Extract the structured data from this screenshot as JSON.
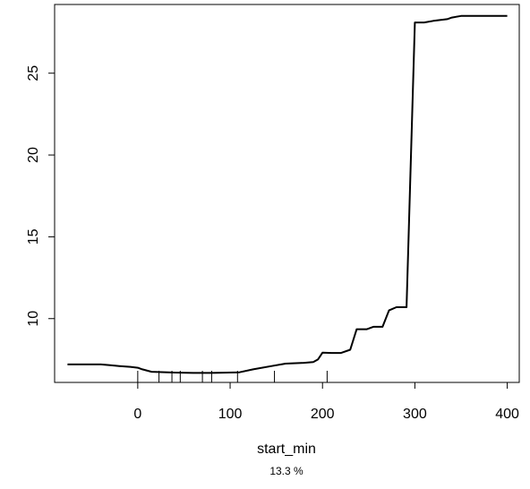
{
  "chart_data": {
    "type": "line",
    "title": "",
    "xlabel": "start_min",
    "subtitle": "13.3 %",
    "ylabel": "",
    "xlim": [
      -90,
      413
    ],
    "ylim": [
      6.1,
      29.2
    ],
    "x_ticks": [
      0,
      100,
      200,
      300,
      400
    ],
    "x_tick_labels": [
      "0",
      "100",
      "200",
      "300",
      "400"
    ],
    "y_ticks": [
      10,
      15,
      20,
      25
    ],
    "y_tick_labels": [
      "10",
      "15",
      "20",
      "25"
    ],
    "grid": false,
    "legend": "none",
    "line_color": "#000000",
    "series": [
      {
        "x": [
          -76,
          -40,
          -30,
          -20,
          -8,
          0,
          5,
          15,
          40,
          60,
          80,
          110,
          125,
          145,
          160,
          180,
          190,
          195,
          200,
          210,
          220,
          230,
          237,
          248,
          255,
          265,
          272,
          280,
          285,
          291,
          300,
          303,
          310,
          320,
          335,
          340,
          350,
          370,
          400
        ],
        "y": [
          7.2,
          7.2,
          7.15,
          7.1,
          7.05,
          7.0,
          6.9,
          6.75,
          6.7,
          6.68,
          6.68,
          6.72,
          6.9,
          7.1,
          7.25,
          7.3,
          7.35,
          7.5,
          7.92,
          7.9,
          7.9,
          8.1,
          9.35,
          9.35,
          9.5,
          9.5,
          10.5,
          10.7,
          10.7,
          10.7,
          28.1,
          28.1,
          28.1,
          28.2,
          28.3,
          28.4,
          28.5,
          28.5,
          28.5
        ]
      }
    ],
    "rug_x": [
      0,
      23,
      37,
      46,
      70,
      80,
      108,
      148,
      205
    ]
  }
}
